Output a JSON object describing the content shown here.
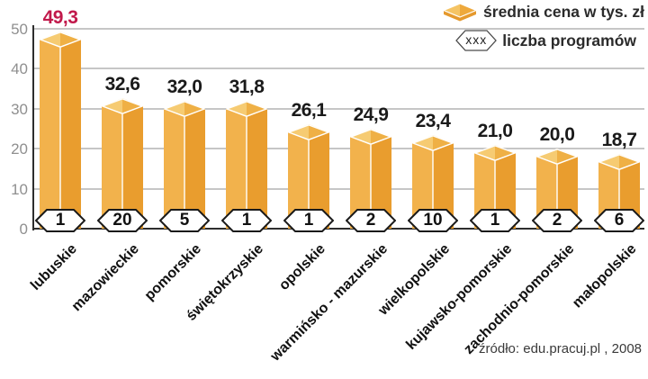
{
  "chart_data": {
    "type": "bar",
    "title": "",
    "categories": [
      "lubuskie",
      "mazowieckie",
      "pomorskie",
      "świętokrzyskie",
      "opolskie",
      "warmińsko - mazurskie",
      "wielkopolskie",
      "kujawsko-pomorskie",
      "zachodnio-pomorskie",
      "małopolskie"
    ],
    "series": [
      {
        "name": "średnia cena w tys. zł",
        "values": [
          49.3,
          32.6,
          32.0,
          31.8,
          26.1,
          24.9,
          23.4,
          21.0,
          20.0,
          18.7
        ]
      },
      {
        "name": "liczba programów",
        "values": [
          1,
          20,
          5,
          1,
          1,
          2,
          10,
          1,
          2,
          6
        ]
      }
    ],
    "value_labels": [
      "49,3",
      "32,6",
      "32,0",
      "31,8",
      "26,1",
      "24,9",
      "23,4",
      "21,0",
      "20,0",
      "18,7"
    ],
    "highlight_index": 0,
    "y_ticks": [
      0,
      10,
      20,
      30,
      40,
      50
    ],
    "ylim": [
      0,
      50
    ],
    "grid": true,
    "legend_position": "top-right",
    "xlabel": "",
    "ylabel": ""
  },
  "legend": {
    "price": "średnia cena w tys. zł",
    "programs": "liczba programów",
    "badge_placeholder": "xxx"
  },
  "source_note": "źródło: edu.pracuj.pl , 2008",
  "colors": {
    "bar_left": "#F2B24C",
    "bar_right": "#E99D2E",
    "bar_top_left": "#F6CB72",
    "bar_top_right": "#EFB045",
    "edge": "#FFFFFF",
    "value_text": "#1A1A1A",
    "value_highlight": "#C1194B",
    "axis": "#2E2E2E",
    "gridline": "#C6C6C6",
    "tick_text": "#8F8F8F",
    "badge_border": "#1A1A1A",
    "badge_fill": "#FFFFFF"
  }
}
